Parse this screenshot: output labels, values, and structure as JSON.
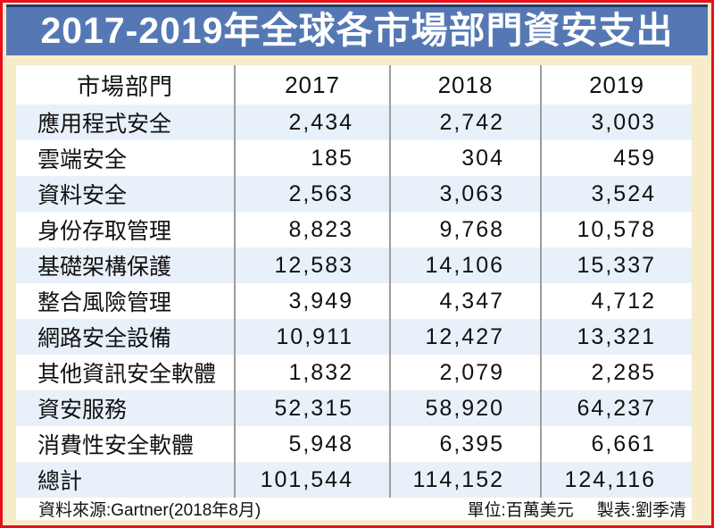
{
  "page": {
    "title": "2017-2019年全球各市場部門資安支出"
  },
  "table": {
    "columns": [
      "市場部門",
      "2017",
      "2018",
      "2019"
    ],
    "rows": [
      {
        "label": "應用程式安全",
        "values": [
          "2,434",
          "2,742",
          "3,003"
        ]
      },
      {
        "label": "雲端安全",
        "values": [
          "185",
          "304",
          "459"
        ]
      },
      {
        "label": "資料安全",
        "values": [
          "2,563",
          "3,063",
          "3,524"
        ]
      },
      {
        "label": "身份存取管理",
        "values": [
          "8,823",
          "9,768",
          "10,578"
        ]
      },
      {
        "label": "基礎架構保護",
        "values": [
          "12,583",
          "14,106",
          "15,337"
        ]
      },
      {
        "label": "整合風險管理",
        "values": [
          "3,949",
          "4,347",
          "4,712"
        ]
      },
      {
        "label": "網路安全設備",
        "values": [
          "10,911",
          "12,427",
          "13,321"
        ]
      },
      {
        "label": "其他資訊安全軟體",
        "values": [
          "1,832",
          "2,079",
          "2,285"
        ]
      },
      {
        "label": "資安服務",
        "values": [
          "52,315",
          "58,920",
          "64,237"
        ]
      },
      {
        "label": "消費性安全軟體",
        "values": [
          "5,948",
          "6,395",
          "6,661"
        ]
      },
      {
        "label": "總計",
        "values": [
          "101,544",
          "114,152",
          "124,116"
        ]
      }
    ]
  },
  "footer": {
    "source": "資料來源:Gartner(2018年8月)",
    "unit": "單位:百萬美元",
    "credit": "製表:劉季清"
  },
  "colors": {
    "border_red": "#e8101c",
    "background_cream": "#f6ecca",
    "banner_blue": "#5578b5",
    "banner_border_navy": "#20386b",
    "stripe_blue": "#e8f1f9",
    "divider_gray": "#9c9c9c",
    "text_dark": "#111111",
    "title_white": "#ffffff"
  },
  "chart_data": {
    "type": "table",
    "title": "2017-2019年全球各市場部門資安支出",
    "unit": "百萬美元",
    "source": "Gartner(2018年8月)",
    "categories": [
      "應用程式安全",
      "雲端安全",
      "資料安全",
      "身份存取管理",
      "基礎架構保護",
      "整合風險管理",
      "網路安全設備",
      "其他資訊安全軟體",
      "資安服務",
      "消費性安全軟體",
      "總計"
    ],
    "series": [
      {
        "name": "2017",
        "values": [
          2434,
          185,
          2563,
          8823,
          12583,
          3949,
          10911,
          1832,
          52315,
          5948,
          101544
        ]
      },
      {
        "name": "2018",
        "values": [
          2742,
          304,
          3063,
          9768,
          14106,
          4347,
          12427,
          2079,
          58920,
          6395,
          114152
        ]
      },
      {
        "name": "2019",
        "values": [
          3003,
          459,
          3524,
          10578,
          15337,
          4712,
          13321,
          2285,
          64237,
          6661,
          124116
        ]
      }
    ]
  }
}
